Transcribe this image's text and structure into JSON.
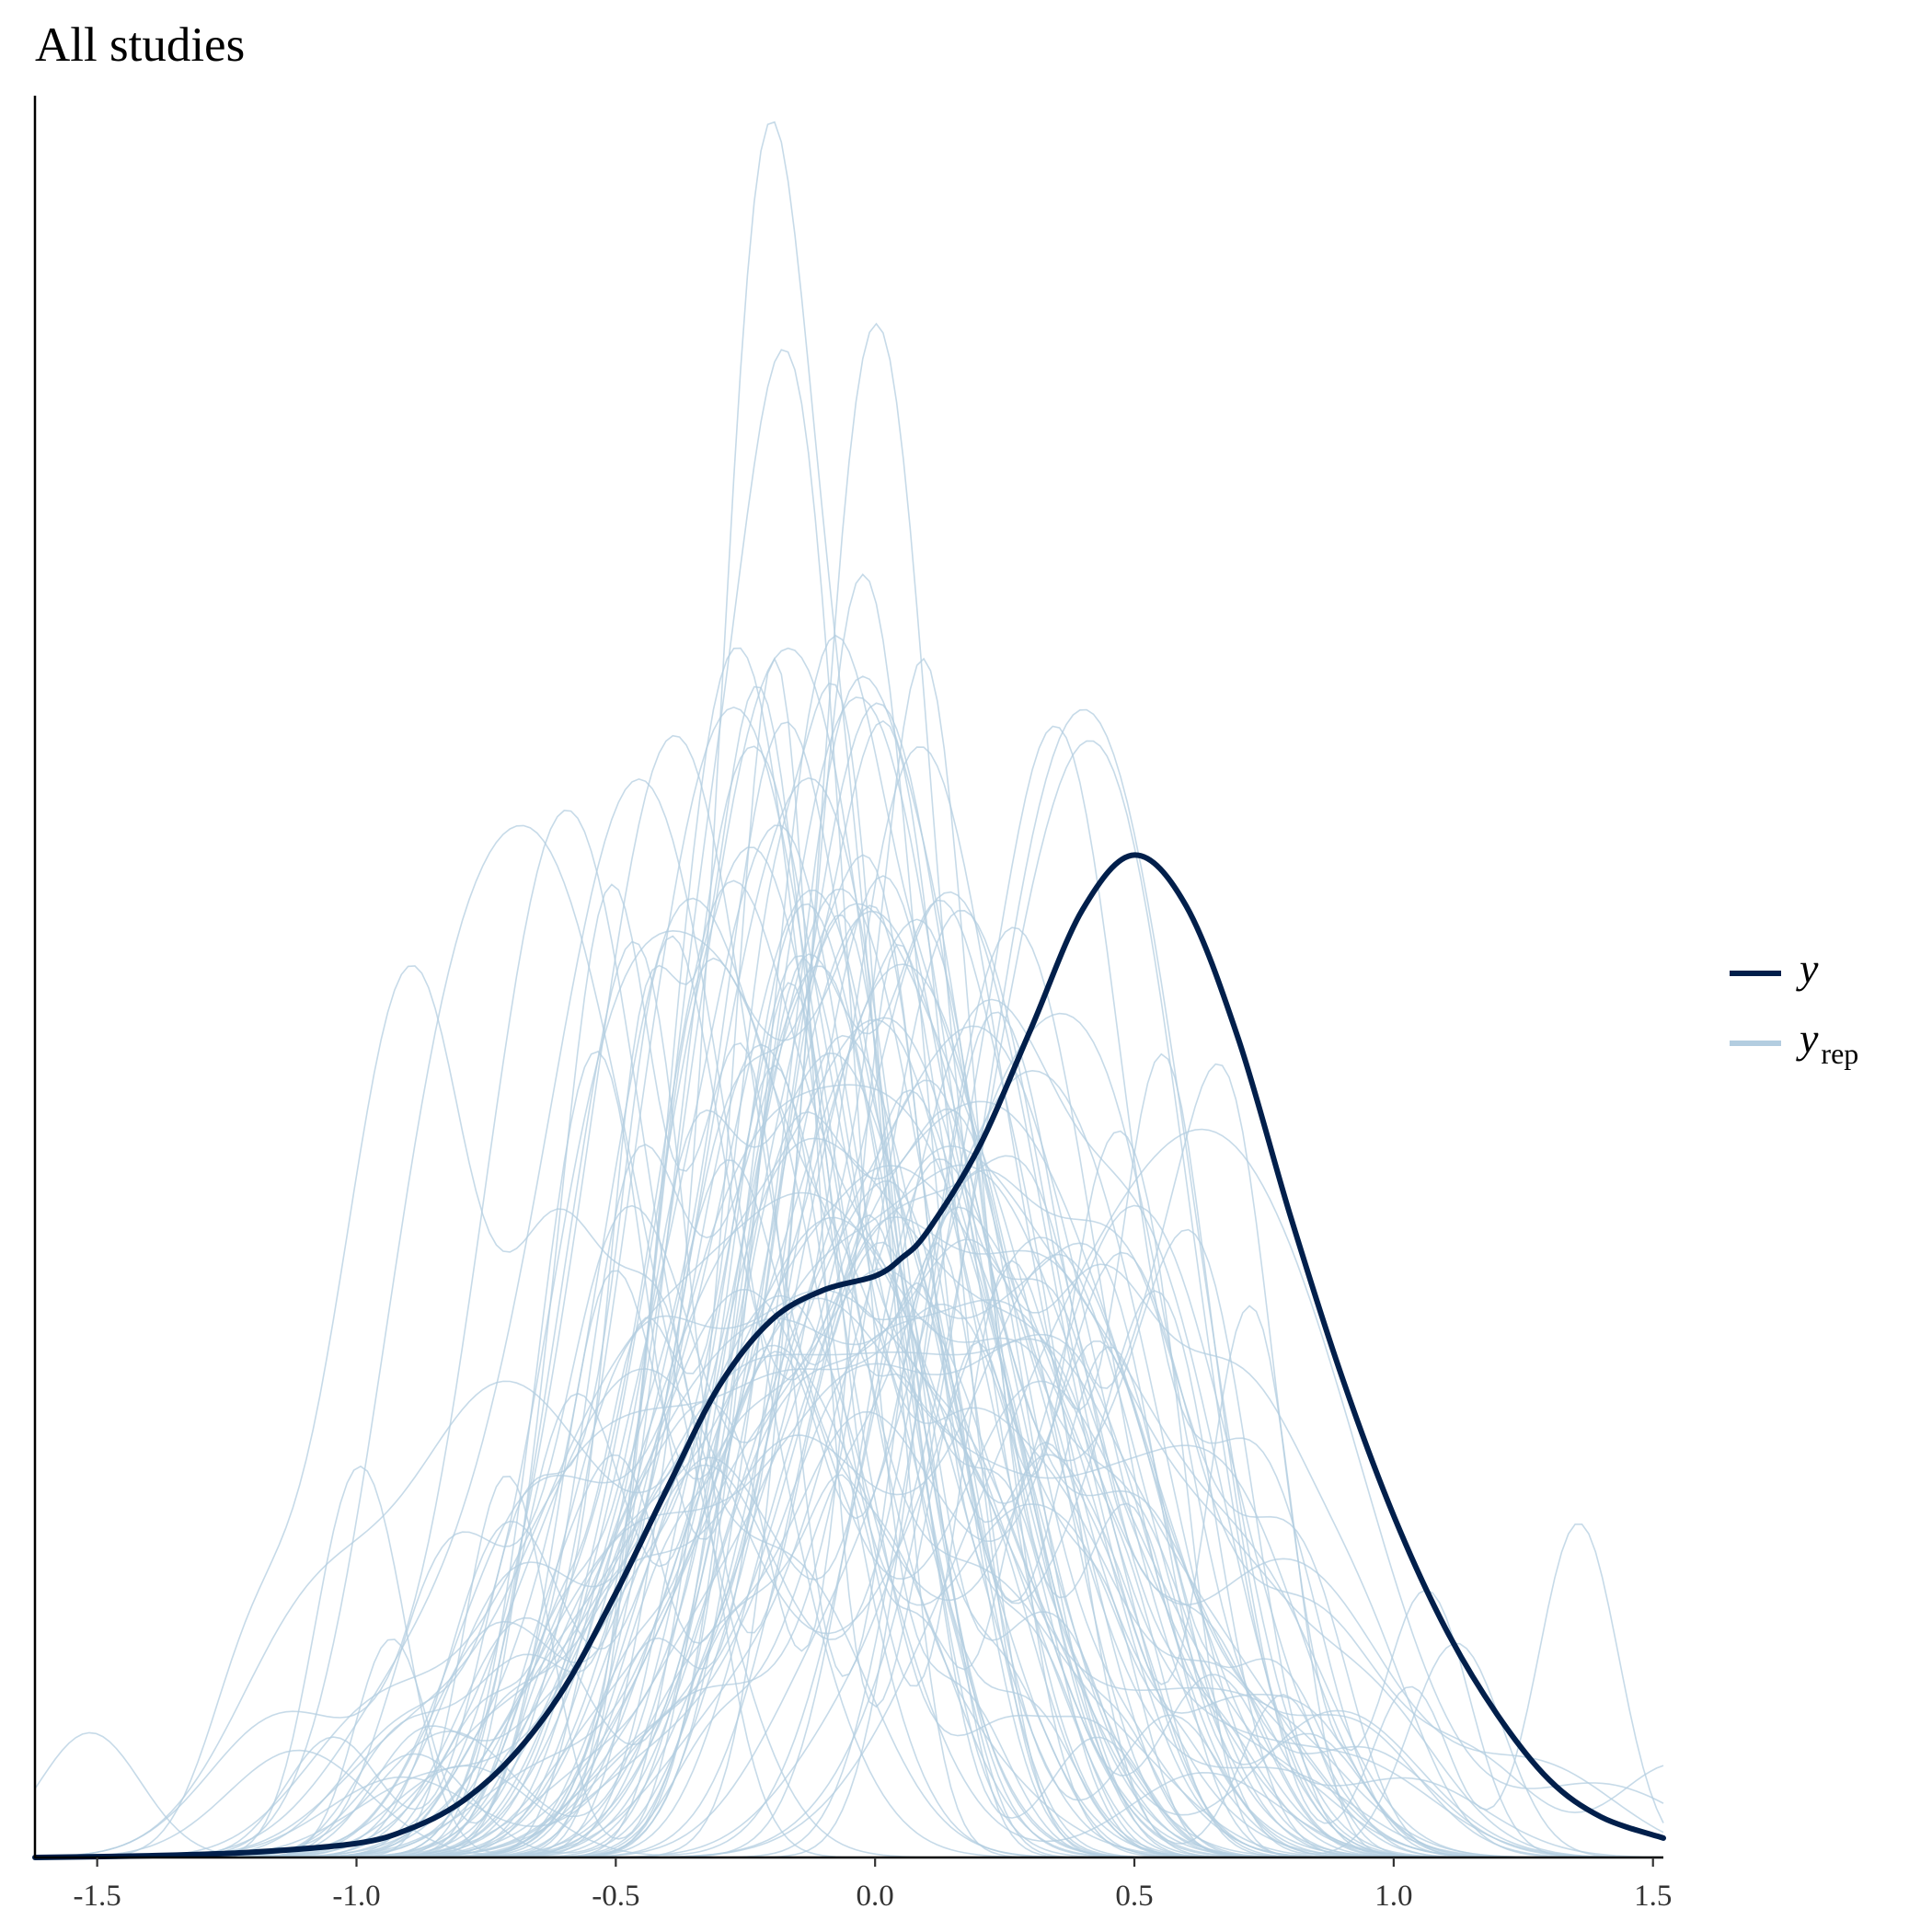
{
  "chart_data": {
    "type": "line",
    "title": "All studies",
    "xlabel": "",
    "ylabel": "",
    "xlim": [
      -1.62,
      1.52
    ],
    "x_ticks": [
      "-1.5",
      "-1.0",
      "-0.5",
      "0.0",
      "0.5",
      "1.0",
      "1.5"
    ],
    "y_axis_visible": false,
    "grid": false,
    "legend_position": "right",
    "colors": {
      "y": "#011f4b",
      "yrep": "#b3cde0"
    },
    "legend": [
      {
        "symbol": "y",
        "subscript": "",
        "color": "#011f4b"
      },
      {
        "symbol": "y",
        "subscript": "rep",
        "color": "#b3cde0"
      }
    ],
    "series": [
      {
        "name": "y",
        "color": "#011f4b",
        "x": [
          -1.62,
          -1.4,
          -1.2,
          -1.0,
          -0.9,
          -0.8,
          -0.7,
          -0.6,
          -0.5,
          -0.4,
          -0.3,
          -0.2,
          -0.1,
          0.0,
          0.05,
          0.1,
          0.2,
          0.3,
          0.4,
          0.5,
          0.6,
          0.7,
          0.8,
          0.9,
          1.0,
          1.1,
          1.2,
          1.3,
          1.4,
          1.52
        ],
        "y": [
          0.0,
          0.001,
          0.003,
          0.008,
          0.016,
          0.031,
          0.057,
          0.096,
          0.15,
          0.21,
          0.268,
          0.305,
          0.322,
          0.33,
          0.34,
          0.355,
          0.403,
          0.47,
          0.538,
          0.569,
          0.54,
          0.465,
          0.365,
          0.273,
          0.194,
          0.13,
          0.081,
          0.044,
          0.023,
          0.011
        ]
      }
    ],
    "yrep_peak_locations": [
      -0.63,
      -0.49,
      -0.43,
      -0.32,
      -0.25,
      -0.16,
      -0.14,
      -0.09,
      0.03,
      0.07,
      0.17,
      0.24,
      0.31,
      0.41,
      0.66
    ]
  }
}
